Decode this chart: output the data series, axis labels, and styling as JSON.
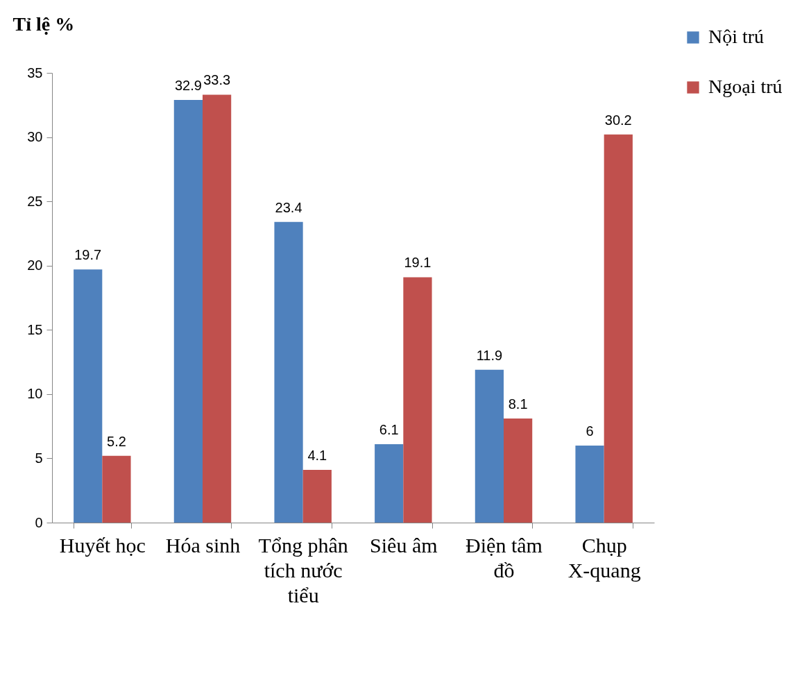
{
  "chart_data": {
    "type": "bar",
    "ylabel": "Tỉ lệ %",
    "categories": [
      "Huyết học",
      "Hóa sinh",
      "Tổng phân tích nước tiểu",
      "Siêu âm",
      "Điện tâm đồ",
      "Chụp X-quang"
    ],
    "series": [
      {
        "name": "Nội trú",
        "color": "#4f81bd",
        "values": [
          19.7,
          32.9,
          23.4,
          6.1,
          11.9,
          6
        ]
      },
      {
        "name": "Ngoại trú",
        "color": "#c0504d",
        "values": [
          5.2,
          33.3,
          4.1,
          19.1,
          8.1,
          30.2
        ]
      }
    ],
    "ylim": [
      0,
      35
    ],
    "yticks": [
      0,
      5,
      10,
      15,
      20,
      25,
      30,
      35
    ],
    "grid": false,
    "legend": "top right",
    "data_labels": true
  }
}
